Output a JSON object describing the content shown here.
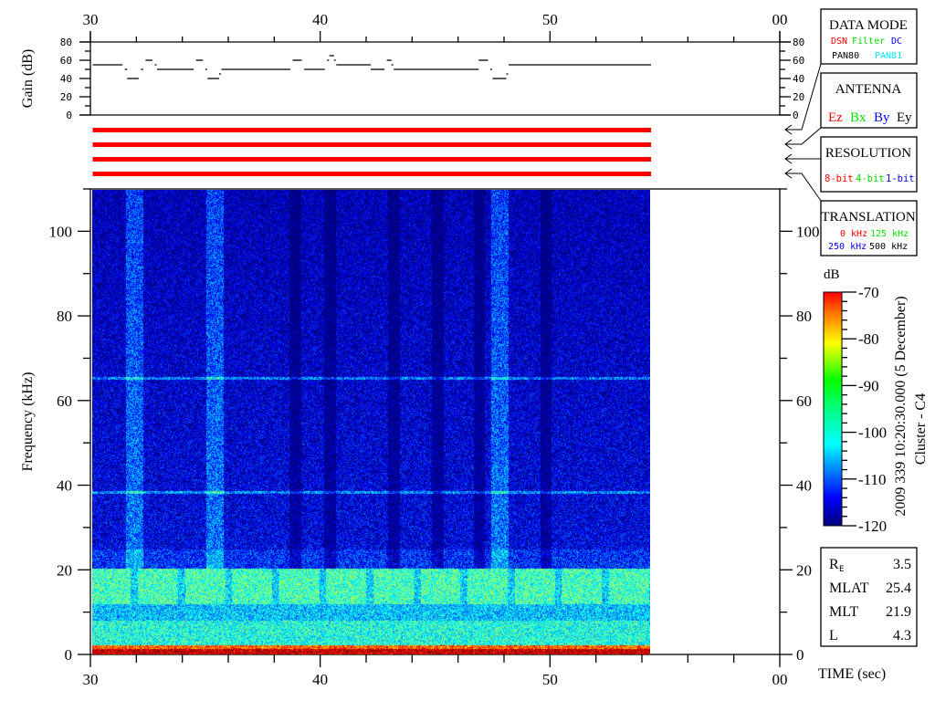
{
  "chart_data": [
    {
      "type": "line",
      "ylabel": "Gain (dB)",
      "ylim": [
        0,
        80
      ],
      "xlim": [
        30,
        60
      ],
      "yticks": [
        "0",
        "20",
        "40",
        "60",
        "80"
      ],
      "xticks": [
        "30",
        "40",
        "50",
        "00"
      ],
      "series": [
        {
          "segments": [
            [
              30.1,
              31.4,
              55
            ],
            [
              31.5,
              31.6,
              50
            ],
            [
              31.6,
              32.1,
              40
            ],
            [
              32.2,
              32.3,
              50
            ],
            [
              32.4,
              32.7,
              60
            ],
            [
              32.8,
              32.8,
              55
            ],
            [
              32.9,
              34.5,
              50
            ],
            [
              34.6,
              34.9,
              60
            ],
            [
              35.0,
              35.0,
              50
            ],
            [
              35.1,
              35.6,
              40
            ],
            [
              35.6,
              35.6,
              45
            ],
            [
              35.7,
              38.7,
              50
            ],
            [
              38.8,
              39.2,
              60
            ],
            [
              39.3,
              40.2,
              50
            ],
            [
              40.3,
              40.3,
              60
            ],
            [
              40.4,
              40.6,
              65
            ],
            [
              40.6,
              40.6,
              60
            ],
            [
              40.7,
              42.2,
              55
            ],
            [
              42.2,
              42.8,
              50
            ],
            [
              42.9,
              43.1,
              60
            ],
            [
              43.1,
              43.1,
              55
            ],
            [
              43.2,
              46.9,
              50
            ],
            [
              46.9,
              47.3,
              60
            ],
            [
              47.4,
              47.4,
              50
            ],
            [
              47.5,
              48.1,
              40
            ],
            [
              48.1,
              48.1,
              45
            ],
            [
              48.2,
              54.4,
              55
            ]
          ]
        }
      ],
      "color": "#000000"
    },
    {
      "type": "heatmap",
      "xlabel": "TIME (sec)",
      "ylabel": "Frequency (kHz)",
      "xlim": [
        30,
        60
      ],
      "ylim": [
        0,
        110
      ],
      "data_time_range": [
        30,
        54.4
      ],
      "xticks": [
        "30",
        "40",
        "50",
        "00"
      ],
      "yticks": [
        "0",
        "20",
        "40",
        "60",
        "80",
        "100"
      ],
      "colorbar": {
        "label": "dB",
        "range": [
          -120,
          -70
        ],
        "ticks": [
          "-70",
          "-80",
          "-90",
          "-100",
          "-110",
          "-120"
        ],
        "colormap": "jet"
      },
      "features": {
        "background_db": -114,
        "bright_vertical_bands_sec": [
          31.9,
          35.4,
          47.8
        ],
        "dark_vertical_bands_sec": [
          38.9,
          40.4,
          43.2,
          45.1,
          46.9,
          49.8
        ],
        "horizontal_lines_khz": [
          65.5,
          38.5
        ],
        "band_12_20_khz_db": -98,
        "band_0_2_khz_db": -73
      }
    }
  ],
  "status_bars": {
    "count": 4,
    "color": "#ff0000",
    "time_range": [
      30.1,
      54.4
    ]
  },
  "data_mode": {
    "title": "DATA MODE",
    "items": [
      {
        "text": "DSN",
        "color": "#ff0000"
      },
      {
        "text": "Filter",
        "color": "#00dd00"
      },
      {
        "text": "DC",
        "color": "#0000ff"
      },
      {
        "text": "PAN80",
        "color": "#000000"
      },
      {
        "text": "PAN81",
        "color": "#00e5ff"
      }
    ]
  },
  "antenna": {
    "title": "ANTENNA",
    "items": [
      {
        "text": "Ez",
        "color": "#ff0000"
      },
      {
        "text": "Bx",
        "color": "#00dd00"
      },
      {
        "text": "By",
        "color": "#0000ff"
      },
      {
        "text": "Ey",
        "color": "#000000"
      }
    ]
  },
  "resolution": {
    "title": "RESOLUTION",
    "items": [
      {
        "text": "8-bit",
        "color": "#ff0000"
      },
      {
        "text": "4-bit",
        "color": "#00dd00"
      },
      {
        "text": "1-bit",
        "color": "#0000ff"
      }
    ]
  },
  "translation": {
    "title": "TRANSLATION",
    "items": [
      {
        "text": "0 kHz",
        "color": "#ff0000"
      },
      {
        "text": "125 kHz",
        "color": "#00dd00"
      },
      {
        "text": "250 kHz",
        "color": "#0000ff"
      },
      {
        "text": "500 kHz",
        "color": "#000000"
      }
    ]
  },
  "timestamp": "2009 339 10:20:30.000 (5 December)",
  "spacecraft": "Cluster - C4",
  "ephemeris": [
    {
      "label": "R",
      "sub": "E",
      "value": "3.5"
    },
    {
      "label": "MLAT",
      "sub": "",
      "value": "25.4"
    },
    {
      "label": "MLT",
      "sub": "",
      "value": "21.9"
    },
    {
      "label": "L",
      "sub": "",
      "value": "4.3"
    }
  ]
}
